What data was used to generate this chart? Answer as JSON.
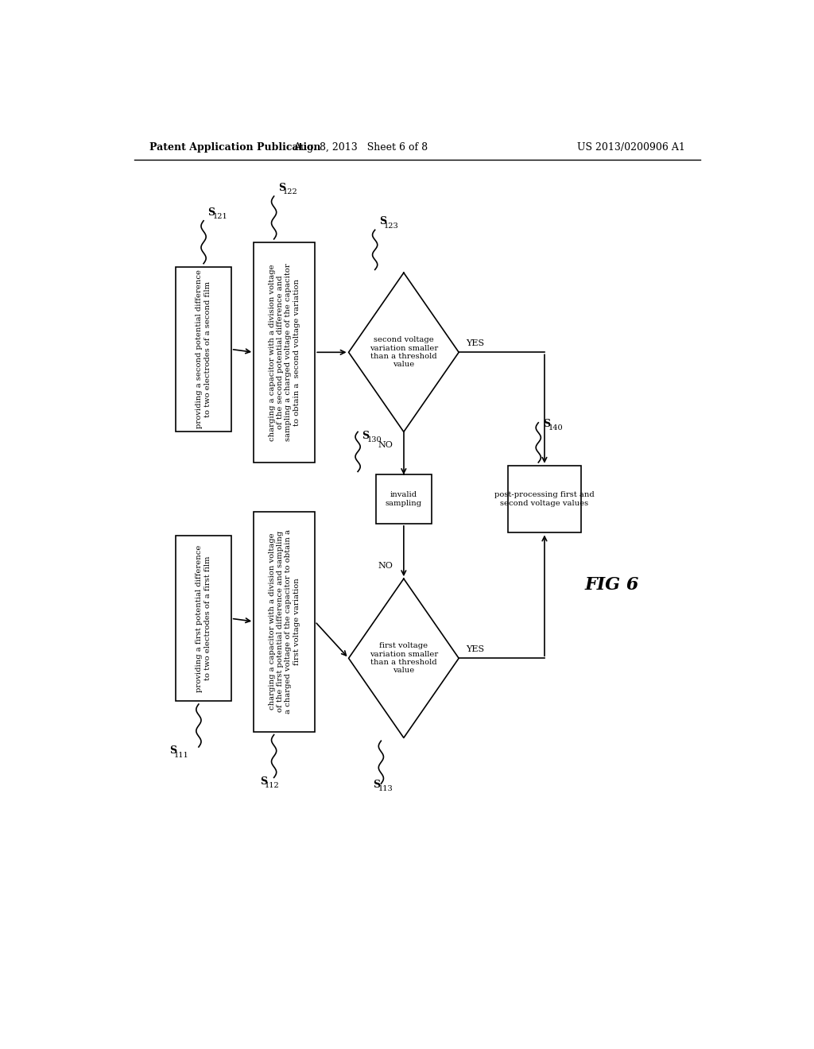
{
  "title": "FIG 6",
  "header_left": "Patent Application Publication",
  "header_center": "Aug. 8, 2013   Sheet 6 of 8",
  "header_right": "US 2013/0200906 A1",
  "bg_color": "#ffffff",
  "box_color": "#ffffff",
  "box_edge": "#000000",
  "line_color": "#000000",
  "font_size_box": 7.2,
  "font_size_header": 9,
  "font_size_fig": 16
}
